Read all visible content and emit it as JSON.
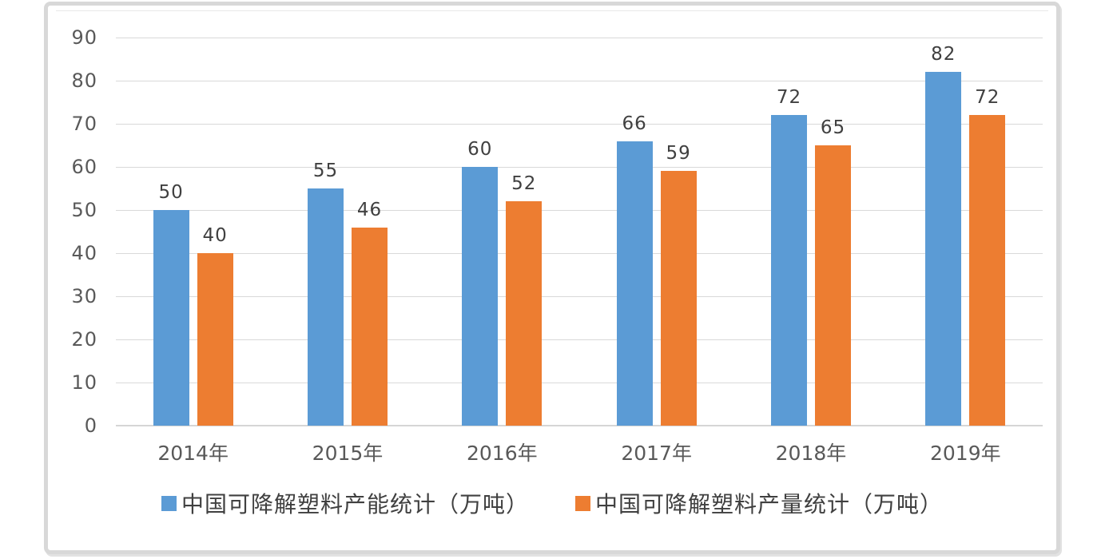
{
  "chart_data": {
    "type": "bar",
    "title": "",
    "categories": [
      "2014年",
      "2015年",
      "2016年",
      "2017年",
      "2018年",
      "2019年"
    ],
    "series": [
      {
        "name": "中国可降解塑料产能统计（万吨）",
        "color": "#5B9BD5",
        "values": [
          50,
          55,
          60,
          66,
          72,
          82
        ]
      },
      {
        "name": "中国可降解塑料产量统计（万吨）",
        "color": "#ED7D31",
        "values": [
          40,
          46,
          52,
          59,
          65,
          72
        ]
      }
    ],
    "ylim": [
      0,
      90
    ],
    "ytick_step": 10,
    "yticks": [
      0,
      10,
      20,
      30,
      40,
      50,
      60,
      70,
      80,
      90
    ],
    "grid": true,
    "bar_labels": true,
    "legend_position": "bottom"
  },
  "colors": {
    "series_blue": "#5B9BD5",
    "series_orange": "#ED7D31",
    "gridline": "#D9D9D9",
    "axis_line": "#D6D6D6",
    "tick_label": "#595959",
    "data_label": "#404040",
    "legend_text": "#404040",
    "frame_border": "#D8D8D8",
    "background": "#FFFFFF"
  }
}
